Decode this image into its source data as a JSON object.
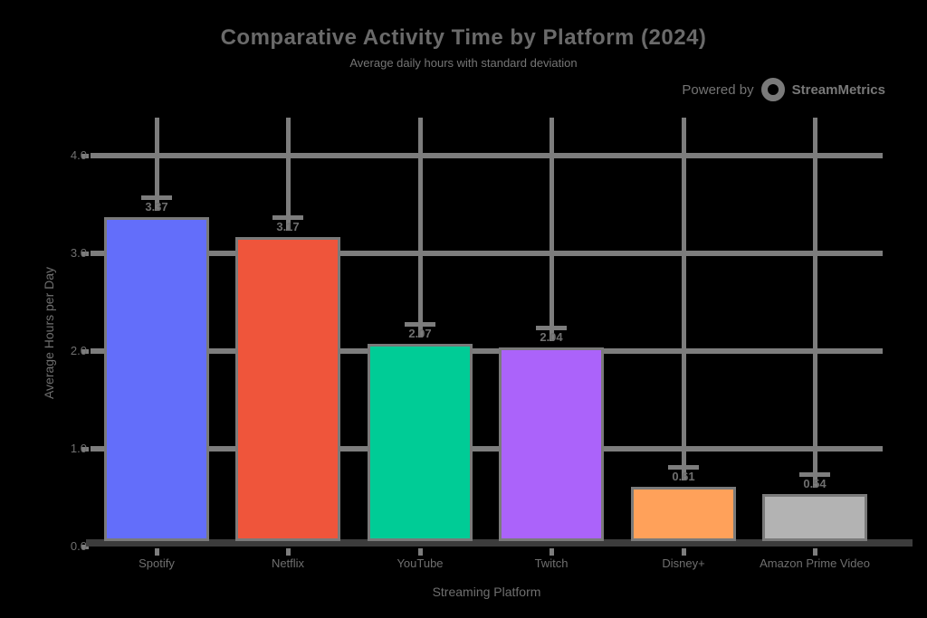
{
  "header": {
    "title": "Comparative Activity Time by Platform (2024)",
    "subtitle": "Average daily hours with standard deviation",
    "credit": {
      "prefix": "Powered by",
      "brand": "StreamMetrics"
    }
  },
  "chart_data": {
    "type": "bar",
    "title": "Comparative Activity Time by Platform (2024)",
    "subtitle": "Average daily hours with standard deviation",
    "xlabel": "Streaming Platform",
    "ylabel": "Average Hours per Day",
    "categories": [
      "Spotify",
      "Netflix",
      "YouTube",
      "Twitch",
      "Disney+",
      "Amazon Prime Video"
    ],
    "values": [
      3.37,
      3.17,
      2.07,
      2.04,
      0.61,
      0.54
    ],
    "value_labels": [
      "3.37",
      "3.17",
      "2.07",
      "2.04",
      "0.61",
      "0.54"
    ],
    "error_whiskers": true,
    "bar_colors": [
      "#636efa",
      "#ef553b",
      "#00cc96",
      "#ab63fa",
      "#ffa15a",
      "#b3b3b3"
    ],
    "ylim": [
      0,
      4.39
    ],
    "yticks": [
      0,
      1,
      2,
      3,
      4
    ],
    "ytick_labels": [
      "0.0",
      "1.0",
      "2.0",
      "3.0",
      "4.0"
    ],
    "grid": true,
    "legend_position": "none",
    "colors": {
      "grid": "#7d7d7d",
      "axis": "#3c3c3c",
      "text": "#6f6f6f",
      "background": "#000000"
    }
  }
}
